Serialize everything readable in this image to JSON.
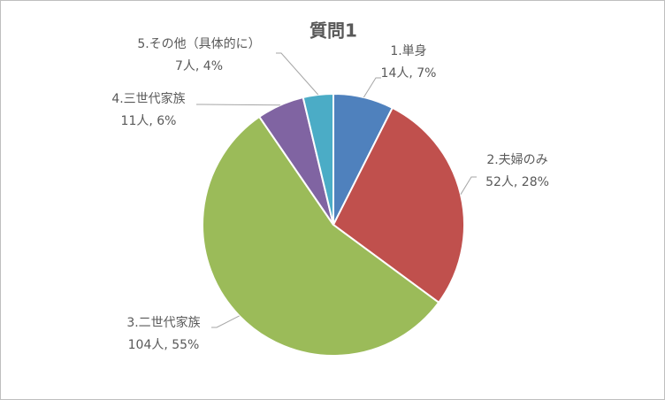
{
  "chart_data": {
    "type": "pie",
    "title": "質問1",
    "categories": [
      "1.単身",
      "2.夫婦のみ",
      "3.二世代家族",
      "4.三世代家族",
      "5.その他（具体的に）"
    ],
    "values": [
      14,
      52,
      104,
      11,
      7
    ],
    "value_labels": [
      "14人, 7%",
      "52人, 28%",
      "104人, 55%",
      "11人, 6%",
      "7人, 4%"
    ],
    "colors": [
      "#4f81bd",
      "#c0504d",
      "#9bbb59",
      "#8064a2",
      "#4bacc6"
    ]
  }
}
